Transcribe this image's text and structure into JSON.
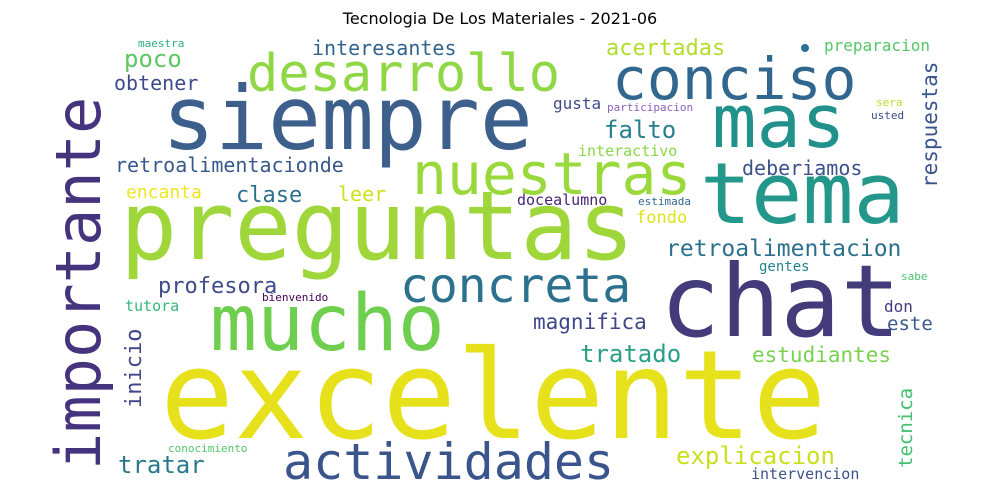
{
  "title": "Tecnologia De Los Materiales - 2021-06",
  "words": [
    {
      "text": "excelente",
      "color": "#e6e11a"
    },
    {
      "text": "preguntas",
      "color": "#9fd63a"
    },
    {
      "text": "siempre",
      "color": "#3d5f8c"
    },
    {
      "text": "chat",
      "color": "#433b7a"
    },
    {
      "text": "mucho",
      "color": "#6ecf4f"
    },
    {
      "text": "tema",
      "color": "#23978a"
    },
    {
      "text": "importante",
      "color": "#46337e"
    },
    {
      "text": "mas",
      "color": "#21918c"
    },
    {
      "text": "desarrollo",
      "color": "#8fd744"
    },
    {
      "text": "conciso",
      "color": "#31668e"
    },
    {
      "text": "nuestras",
      "color": "#9ad93c"
    },
    {
      "text": "actividades",
      "color": "#3a548c"
    },
    {
      "text": "concreta",
      "color": "#2c728e"
    },
    {
      "text": "retroalimentacion",
      "color": "#2d708e"
    },
    {
      "text": "retroalimentacionde",
      "color": "#38598c"
    },
    {
      "text": "explicacion",
      "color": "#c8e020"
    },
    {
      "text": "tratado",
      "color": "#2a9f87"
    },
    {
      "text": "estudiantes",
      "color": "#7ad151"
    },
    {
      "text": "interesantes",
      "color": "#33638d"
    },
    {
      "text": "acertadas",
      "color": "#b2dd2d"
    },
    {
      "text": "poco",
      "color": "#5dc863"
    },
    {
      "text": "obtener",
      "color": "#3e4a89"
    },
    {
      "text": "falto",
      "color": "#27808e"
    },
    {
      "text": "deberiamos",
      "color": "#3b528b"
    },
    {
      "text": "clase",
      "color": "#2d6f8e"
    },
    {
      "text": "leer",
      "color": "#cde11d"
    },
    {
      "text": "encanta",
      "color": "#f0e51f"
    },
    {
      "text": "profesora",
      "color": "#3e4c8a"
    },
    {
      "text": "magnifica",
      "color": "#3f4788"
    },
    {
      "text": "tratar",
      "color": "#2a788e"
    },
    {
      "text": "respuestas",
      "color": "#39558c"
    },
    {
      "text": "inicio",
      "color": "#404588"
    },
    {
      "text": "tecnica",
      "color": "#44bf70"
    },
    {
      "text": "fondo",
      "color": "#dde318"
    },
    {
      "text": "este",
      "color": "#38598c"
    },
    {
      "text": "preparacion",
      "color": "#55c667"
    },
    {
      "text": "interactivo",
      "color": "#8bd646"
    },
    {
      "text": "gusta",
      "color": "#3f4a8a"
    },
    {
      "text": "docealumno",
      "color": "#482475"
    },
    {
      "text": "tutora",
      "color": "#35b779"
    },
    {
      "text": "don",
      "color": "#453882"
    },
    {
      "text": "gentes",
      "color": "#26828e"
    },
    {
      "text": "intervencion",
      "color": "#3b528b"
    },
    {
      "text": "maestra",
      "color": "#2ab07f"
    },
    {
      "text": "participacion",
      "color": "#8b5fbf"
    },
    {
      "text": "estimada",
      "color": "#30698e"
    },
    {
      "text": "bienvenido",
      "color": "#440154"
    },
    {
      "text": "sera",
      "color": "#b5de2b"
    },
    {
      "text": "usted",
      "color": "#3e4989"
    },
    {
      "text": "sabe",
      "color": "#4ac16d"
    },
    {
      "text": "conocimiento",
      "color": "#52c569"
    }
  ]
}
